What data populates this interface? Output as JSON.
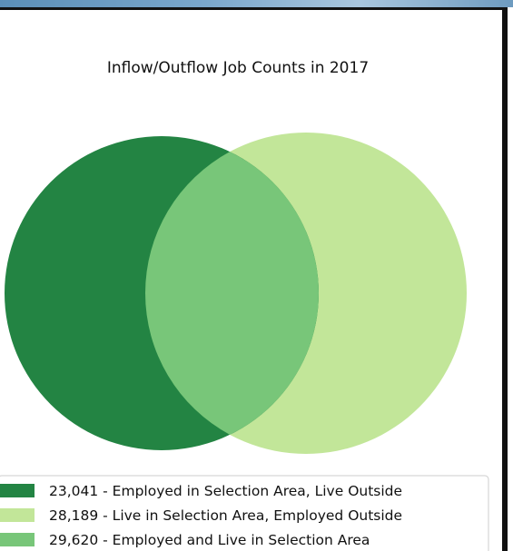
{
  "chart_data": {
    "type": "venn",
    "title": "Inflow/Outflow Job Counts in 2017",
    "sets": [
      {
        "name": "Employed in Selection Area",
        "only_label": "23,041 - Employed in Selection Area, Live Outside",
        "only_value": 23041
      },
      {
        "name": "Live in Selection Area",
        "only_label": "28,189 - Live in Selection Area, Employed Outside",
        "only_value": 28189
      }
    ],
    "overlap": {
      "label": "29,620 - Employed and Live in Selection Area",
      "value": 29620
    },
    "legend": [
      {
        "label": "23,041 - Employed in Selection Area, Live Outside",
        "color": "#238443"
      },
      {
        "label": "28,189 - Live in Selection Area, Employed Outside",
        "color": "#c2e699"
      },
      {
        "label": "29,620 - Employed and Live in Selection Area",
        "color": "#78c679"
      }
    ],
    "legend_placement": "bottom",
    "colors": {
      "employed_only": "#238443",
      "live_only": "#c2e699",
      "overlap": "#78c679"
    }
  }
}
